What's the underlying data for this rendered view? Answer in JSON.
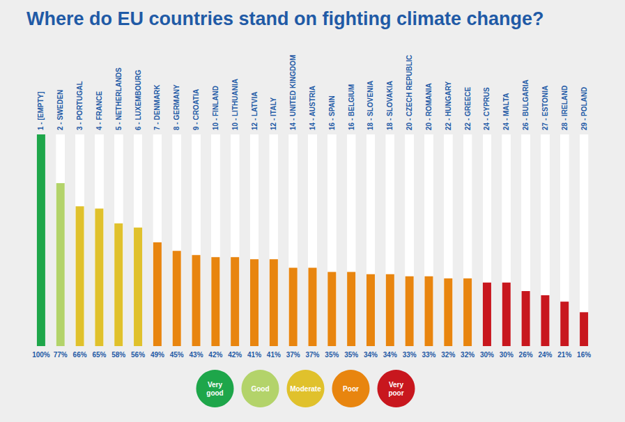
{
  "chart_data": {
    "type": "bar",
    "title": "Where do EU countries stand on fighting climate change?",
    "categories": [
      "1 - [EMPTY]",
      "2 - SWEDEN",
      "3 - PORTUGAL",
      "4 - FRANCE",
      "5 - NETHERLANDS",
      "6 - LUXEMBOURG",
      "7 - DENMARK",
      "8 - GERMANY",
      "9 - CROATIA",
      "10 - FINLAND",
      "10 - LITHUANIA",
      "12 - LATVIA",
      "12 - ITALY",
      "14 - UNITED KINGDOM",
      "14 - AUSTRIA",
      "16 - SPAIN",
      "16 - BELGIUM",
      "18 - SLOVENIA",
      "18 - SLOVAKIA",
      "20 - CZECH REPUBLIC",
      "20 - ROMANIA",
      "22 - HUNGARY",
      "22 - GREECE",
      "24 - CYPRUS",
      "24 - MALTA",
      "26 - BULGARIA",
      "27 - ESTONIA",
      "28 - IRELAND",
      "29 - POLAND"
    ],
    "series": [
      {
        "name": "Very good",
        "color": "#1ea64a",
        "values": [
          100,
          null,
          null,
          null,
          null,
          null,
          null,
          null,
          null,
          null,
          null,
          null,
          null,
          null,
          null,
          null,
          null,
          null,
          null,
          null,
          null,
          null,
          null,
          null,
          null,
          null,
          null,
          null,
          null
        ],
        "value_labels": [
          "100%",
          null,
          null,
          null,
          null,
          null,
          null,
          null,
          null,
          null,
          null,
          null,
          null,
          null,
          null,
          null,
          null,
          null,
          null,
          null,
          null,
          null,
          null,
          null,
          null,
          null,
          null,
          null,
          null
        ]
      },
      {
        "name": "Good",
        "color": "#b3d36a",
        "values": [
          null,
          77,
          null,
          null,
          null,
          null,
          null,
          null,
          null,
          null,
          null,
          null,
          null,
          null,
          null,
          null,
          null,
          null,
          null,
          null,
          null,
          null,
          null,
          null,
          null,
          null,
          null,
          null,
          null
        ],
        "value_labels": [
          null,
          "77%",
          null,
          null,
          null,
          null,
          null,
          null,
          null,
          null,
          null,
          null,
          null,
          null,
          null,
          null,
          null,
          null,
          null,
          null,
          null,
          null,
          null,
          null,
          null,
          null,
          null,
          null,
          null
        ]
      },
      {
        "name": "Moderate",
        "color": "#e0c12c",
        "values": [
          null,
          null,
          66,
          65,
          58,
          56,
          null,
          null,
          null,
          null,
          null,
          null,
          null,
          null,
          null,
          null,
          null,
          null,
          null,
          null,
          null,
          null,
          null,
          null,
          null,
          null,
          null,
          null,
          null
        ],
        "value_labels": [
          null,
          null,
          "66%",
          "65%",
          "58%",
          "56%",
          null,
          null,
          null,
          null,
          null,
          null,
          null,
          null,
          null,
          null,
          null,
          null,
          null,
          null,
          null,
          null,
          null,
          null,
          null,
          null,
          null,
          null,
          null
        ]
      },
      {
        "name": "Poor",
        "color": "#e8850f",
        "values": [
          null,
          null,
          null,
          null,
          null,
          null,
          49,
          45,
          43,
          42,
          42,
          41,
          41,
          37,
          37,
          35,
          35,
          34,
          34,
          33,
          33,
          32,
          32,
          null,
          null,
          null,
          null,
          null,
          null
        ],
        "value_labels": [
          null,
          null,
          null,
          null,
          null,
          null,
          "49%",
          "45%",
          "43%",
          "42%",
          "42%",
          "41%",
          "41%",
          "37%",
          "37%",
          "35%",
          "35%",
          "34%",
          "34%",
          "33%",
          "33%",
          "32%",
          "32%",
          null,
          null,
          null,
          null,
          null,
          null
        ]
      },
      {
        "name": "Very poor",
        "color": "#c8171e",
        "values": [
          null,
          null,
          null,
          null,
          null,
          null,
          null,
          null,
          null,
          null,
          null,
          null,
          null,
          null,
          null,
          null,
          null,
          null,
          null,
          null,
          null,
          null,
          null,
          30,
          30,
          26,
          24,
          21,
          16
        ],
        "value_labels": [
          null,
          null,
          null,
          null,
          null,
          null,
          null,
          null,
          null,
          null,
          null,
          null,
          null,
          null,
          null,
          null,
          null,
          null,
          null,
          null,
          null,
          null,
          null,
          "30%",
          "30%",
          "26%",
          "24%",
          "21%",
          "16%"
        ]
      }
    ],
    "ylim": [
      0,
      100
    ],
    "yticks": [
      0,
      100
    ],
    "grid": false,
    "data_labels": true,
    "tick_labels": "x"
  }
}
